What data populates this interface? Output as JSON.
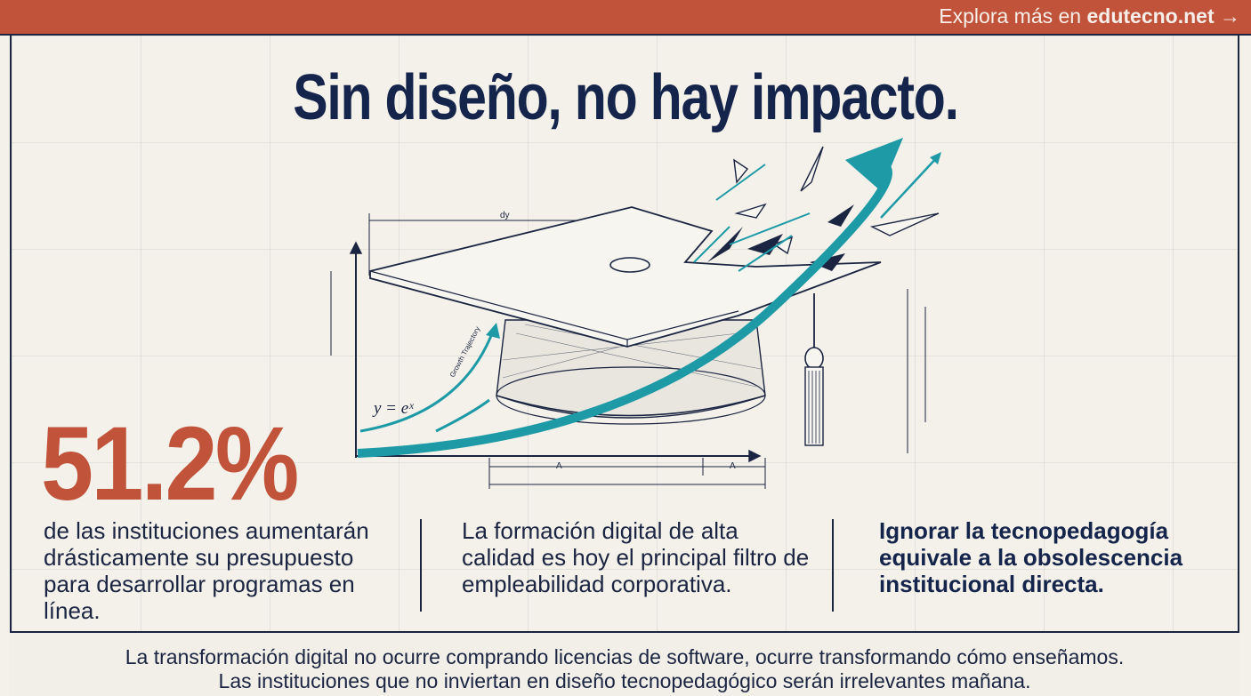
{
  "topbar": {
    "link_prefix": "Explora más en ",
    "link_domain": "edutecno.net",
    "arrow_glyph": "→"
  },
  "headline": "Sin diseño, no hay impacto.",
  "illustration": {
    "formula": "y = eˣ",
    "curve_label": "Growth Trajectory",
    "dim_top": "dy",
    "dim_bottom_left": "A",
    "dim_bottom_right": "A"
  },
  "stat": {
    "value": "51.2%",
    "description": "de las instituciones aumentarán drásticamente su presupuesto para desarrollar programas en línea."
  },
  "columns": {
    "middle": "La formación digital de alta calidad es hoy el principal filtro de empleabilidad corporativa.",
    "right": "Ignorar la tecnopedagogía equivale a la obsolescencia institucional directa."
  },
  "footer": {
    "line1": "La transformación digital no ocurre comprando licencias de software, ocurre transformando cómo enseñamos.",
    "line2": "Las instituciones que no inviertan en diseño tecnopedagógico serán irrelevantes mañana."
  },
  "colors": {
    "accent": "#c0533a",
    "navy": "#14244a",
    "teal": "#1e9aa6",
    "paper": "#f3f1ea"
  }
}
